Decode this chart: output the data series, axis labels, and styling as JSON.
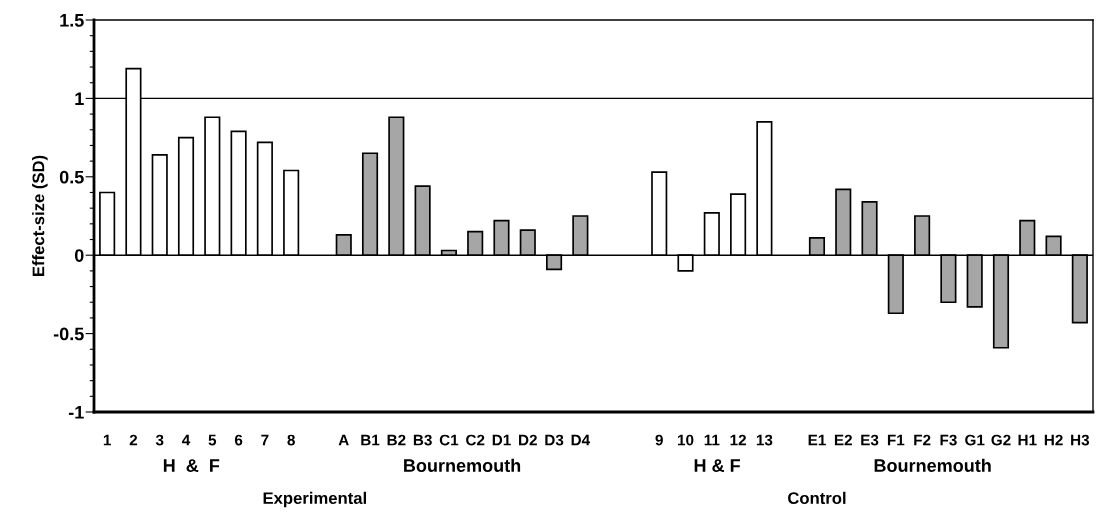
{
  "chart_data": {
    "type": "bar",
    "ylabel": "Effect-size (SD)",
    "categories": [
      "1",
      "2",
      "3",
      "4",
      "5",
      "6",
      "7",
      "8",
      null,
      "A",
      "B1",
      "B2",
      "B3",
      "C1",
      "C2",
      "D1",
      "D2",
      "D3",
      "D4",
      null,
      null,
      "9",
      "10",
      "11",
      "12",
      "13",
      null,
      "E1",
      "E2",
      "E3",
      "F1",
      "F2",
      "F3",
      "G1",
      "G2",
      "H1",
      "H2",
      "H3"
    ],
    "values": [
      0.4,
      1.19,
      0.64,
      0.75,
      0.88,
      0.79,
      0.72,
      0.54,
      null,
      0.13,
      0.65,
      0.88,
      0.44,
      0.03,
      0.15,
      0.22,
      0.16,
      -0.09,
      0.25,
      null,
      null,
      0.53,
      -0.1,
      0.27,
      0.39,
      0.85,
      null,
      0.11,
      0.42,
      0.34,
      -0.37,
      0.25,
      -0.3,
      -0.33,
      -0.59,
      0.22,
      0.12,
      -0.43
    ],
    "colors": [
      "#ffffff",
      "#ffffff",
      "#ffffff",
      "#ffffff",
      "#ffffff",
      "#ffffff",
      "#ffffff",
      "#ffffff",
      null,
      "#a6a6a6",
      "#a6a6a6",
      "#a6a6a6",
      "#a6a6a6",
      "#a6a6a6",
      "#a6a6a6",
      "#a6a6a6",
      "#a6a6a6",
      "#a6a6a6",
      "#a6a6a6",
      null,
      null,
      "#ffffff",
      "#ffffff",
      "#ffffff",
      "#ffffff",
      "#ffffff",
      null,
      "#a6a6a6",
      "#a6a6a6",
      "#a6a6a6",
      "#a6a6a6",
      "#a6a6a6",
      "#a6a6a6",
      "#a6a6a6",
      "#a6a6a6",
      "#a6a6a6",
      "#a6a6a6",
      "#a6a6a6"
    ],
    "ylim": [
      -1,
      1.5
    ],
    "yticks": [
      -1,
      {
        "value": -0.9,
        "label": null
      },
      {
        "value": -0.8,
        "label": null
      },
      {
        "value": -0.7,
        "label": null
      },
      {
        "value": -0.6,
        "label": null
      },
      -0.5,
      {
        "value": -0.4,
        "label": null
      },
      {
        "value": -0.3,
        "label": null
      },
      {
        "value": -0.2,
        "label": null
      },
      {
        "value": -0.1,
        "label": null
      },
      0,
      {
        "value": 0.1,
        "label": null
      },
      {
        "value": 0.2,
        "label": null
      },
      {
        "value": 0.3,
        "label": null
      },
      {
        "value": 0.4,
        "label": null
      },
      0.5,
      {
        "value": 0.6,
        "label": null
      },
      {
        "value": 0.7,
        "label": null
      },
      {
        "value": 0.8,
        "label": null
      },
      {
        "value": 0.9,
        "label": null
      },
      1,
      {
        "value": 1.1,
        "label": null
      },
      {
        "value": 1.2,
        "label": null
      },
      {
        "value": 1.3,
        "label": null
      },
      {
        "value": 1.4,
        "label": null
      },
      1.5
    ],
    "ref_lines": [
      {
        "axis": "y",
        "value": 0,
        "color": "#000000"
      },
      {
        "axis": "y",
        "value": 1,
        "color": "#000000"
      }
    ],
    "annotations": [
      "H  &  F",
      "Bournemouth",
      "H & F",
      "Bournemouth",
      "Experimental",
      "Control"
    ],
    "grid": false,
    "legend": false
  }
}
